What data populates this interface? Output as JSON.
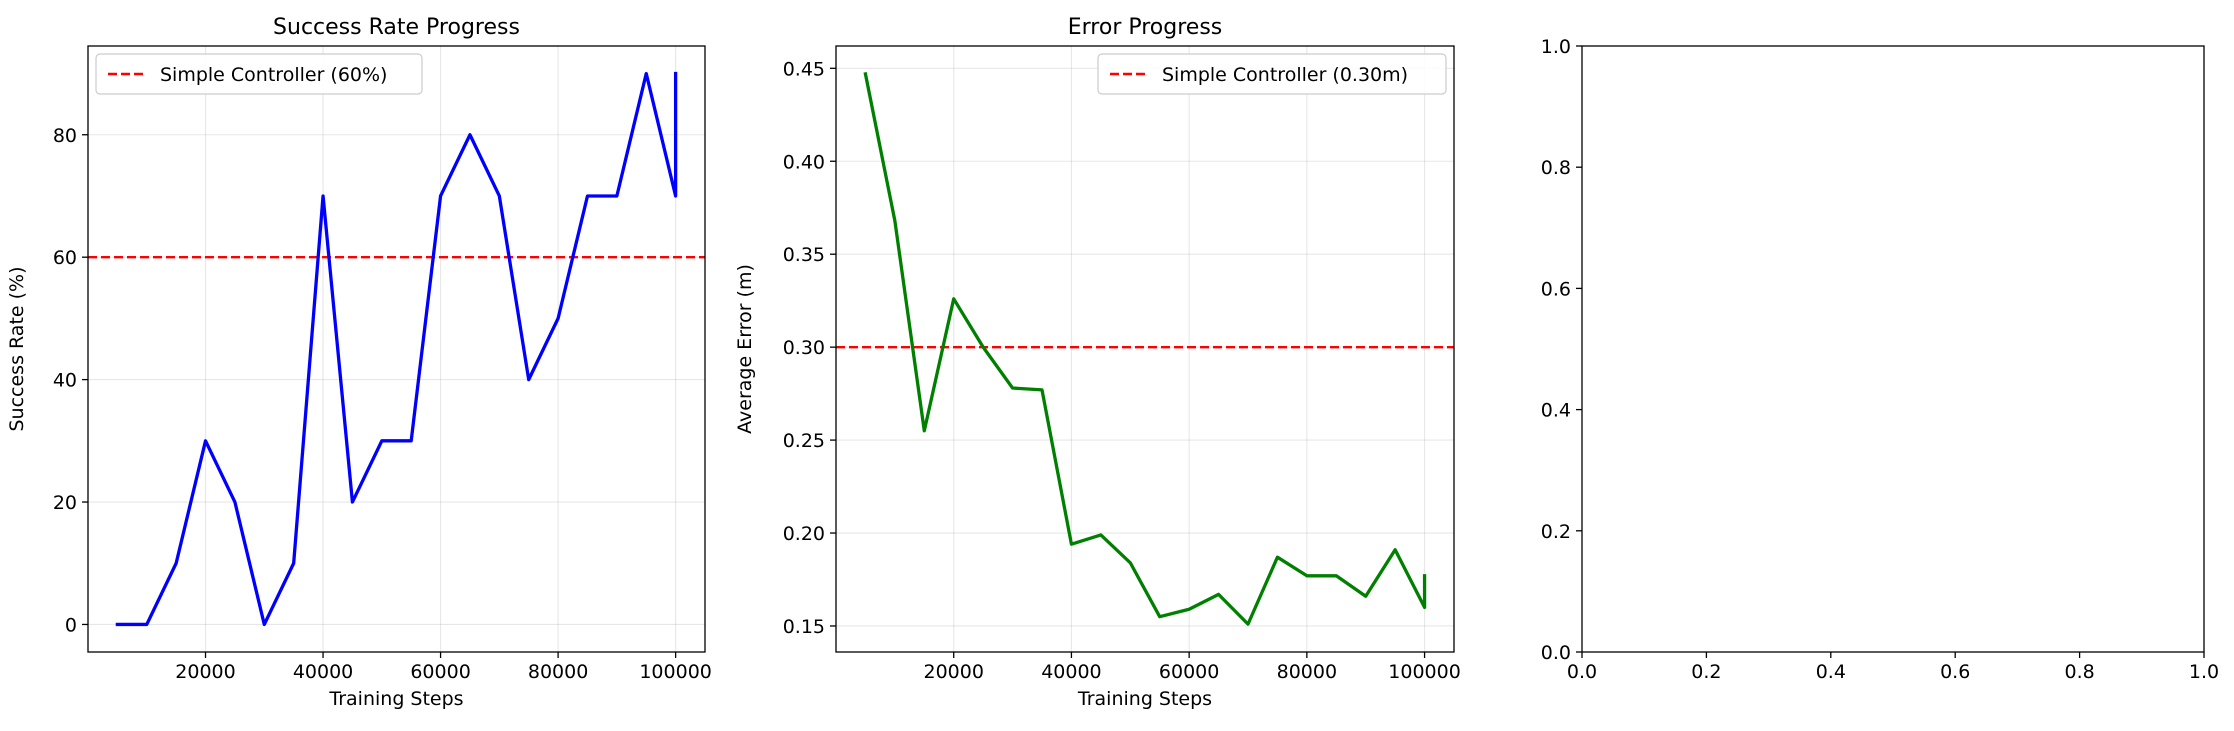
{
  "chart_data": [
    {
      "type": "line",
      "title": "Success Rate Progress",
      "xlabel": "Training Steps",
      "ylabel": "Success Rate (%)",
      "xlim": [
        0,
        105000
      ],
      "ylim": [
        -4.5,
        94.5
      ],
      "xticks": [
        20000,
        40000,
        60000,
        80000,
        100000
      ],
      "yticks": [
        0,
        20,
        40,
        60,
        80
      ],
      "grid": true,
      "legend": "top-left",
      "series": [
        {
          "color": "#0000ff",
          "x": [
            5000,
            10000,
            15000,
            20000,
            25000,
            30000,
            35000,
            40000,
            45000,
            50000,
            55000,
            60000,
            65000,
            70000,
            75000,
            80000,
            85000,
            90000,
            95000,
            100000,
            100000
          ],
          "y": [
            0,
            0,
            10,
            30,
            20,
            0,
            10,
            70,
            20,
            30,
            30,
            70,
            80,
            70,
            40,
            50,
            70,
            70,
            90,
            70,
            90
          ]
        }
      ],
      "reference_line": {
        "label": "Simple Controller (60%)",
        "y": 60,
        "color": "#ff0000",
        "style": "dashed"
      }
    },
    {
      "type": "line",
      "title": "Error Progress",
      "xlabel": "Training Steps",
      "ylabel": "Average Error (m)",
      "xlim": [
        0,
        105000
      ],
      "ylim": [
        0.136,
        0.462
      ],
      "xticks": [
        20000,
        40000,
        60000,
        80000,
        100000
      ],
      "yticks": [
        0.15,
        0.2,
        0.25,
        0.3,
        0.35,
        0.4,
        0.45
      ],
      "grid": true,
      "legend": "top-right",
      "series": [
        {
          "color": "#008000",
          "x": [
            5000,
            10000,
            15000,
            20000,
            25000,
            30000,
            35000,
            40000,
            45000,
            50000,
            55000,
            60000,
            65000,
            70000,
            75000,
            80000,
            85000,
            90000,
            95000,
            100000,
            100000
          ],
          "y": [
            0.447,
            0.368,
            0.255,
            0.326,
            0.3,
            0.278,
            0.277,
            0.194,
            0.199,
            0.184,
            0.155,
            0.159,
            0.167,
            0.151,
            0.187,
            0.177,
            0.177,
            0.166,
            0.191,
            0.16,
            0.177
          ]
        }
      ],
      "reference_line": {
        "label": "Simple Controller (0.30m)",
        "y": 0.3,
        "color": "#ff0000",
        "style": "dashed"
      }
    },
    {
      "type": "line",
      "title": "",
      "xlabel": "",
      "ylabel": "",
      "xlim": [
        0,
        1
      ],
      "ylim": [
        0,
        1
      ],
      "xticks": [
        0,
        0.2,
        0.4,
        0.6,
        0.8,
        1
      ],
      "yticks": [
        0,
        0.2,
        0.4,
        0.6,
        0.8,
        1
      ],
      "grid": false,
      "series": []
    }
  ]
}
